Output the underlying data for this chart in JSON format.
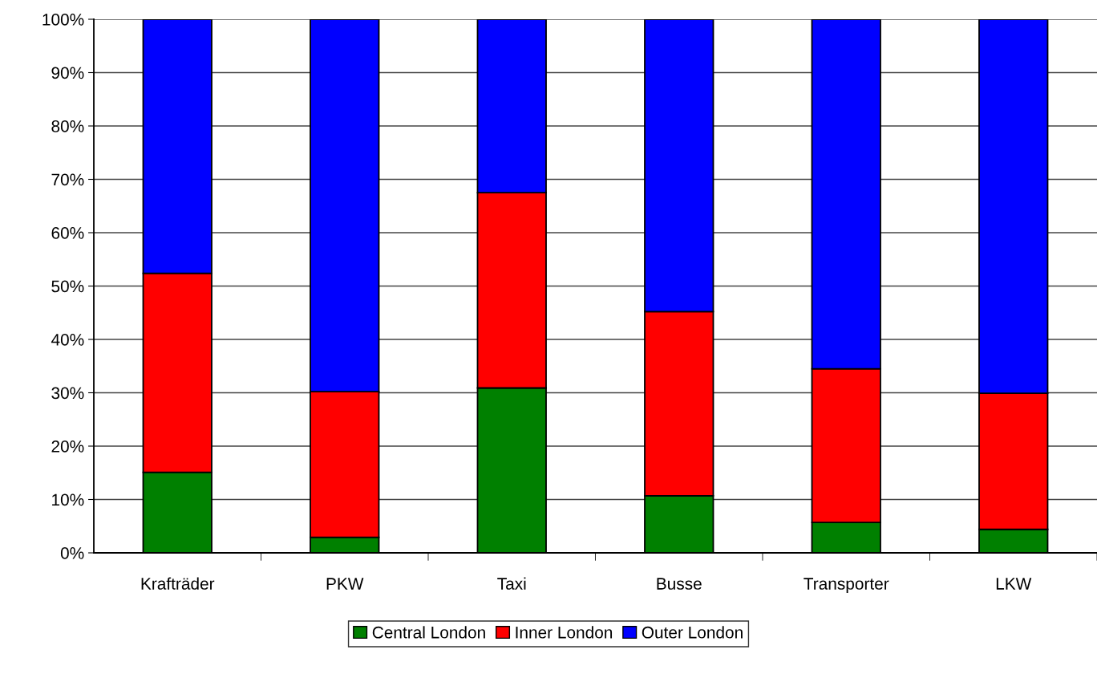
{
  "chart_data": {
    "type": "bar",
    "stacked": true,
    "categories": [
      "Krafträder",
      "PKW",
      "Taxi",
      "Busse",
      "Transporter",
      "LKW"
    ],
    "series": [
      {
        "name": "Central London",
        "color": "#008000",
        "values": [
          15.1,
          2.9,
          30.9,
          10.7,
          5.7,
          4.4
        ]
      },
      {
        "name": "Inner London",
        "color": "#ff0000",
        "values": [
          37.3,
          27.3,
          36.6,
          34.5,
          28.8,
          25.5
        ]
      },
      {
        "name": "Outer London",
        "color": "#0000ff",
        "values": [
          47.6,
          69.8,
          32.5,
          54.8,
          65.5,
          70.1
        ]
      }
    ],
    "ylim": [
      0,
      100
    ],
    "yticks": [
      {
        "value": 0,
        "label": "0%"
      },
      {
        "value": 10,
        "label": "10%"
      },
      {
        "value": 20,
        "label": "20%"
      },
      {
        "value": 30,
        "label": "30%"
      },
      {
        "value": 40,
        "label": "40%"
      },
      {
        "value": 50,
        "label": "50%"
      },
      {
        "value": 60,
        "label": "60%"
      },
      {
        "value": 70,
        "label": "70%"
      },
      {
        "value": 80,
        "label": "80%"
      },
      {
        "value": 90,
        "label": "90%"
      },
      {
        "value": 100,
        "label": "100%"
      }
    ],
    "grid": "y",
    "legend": "bottom"
  }
}
